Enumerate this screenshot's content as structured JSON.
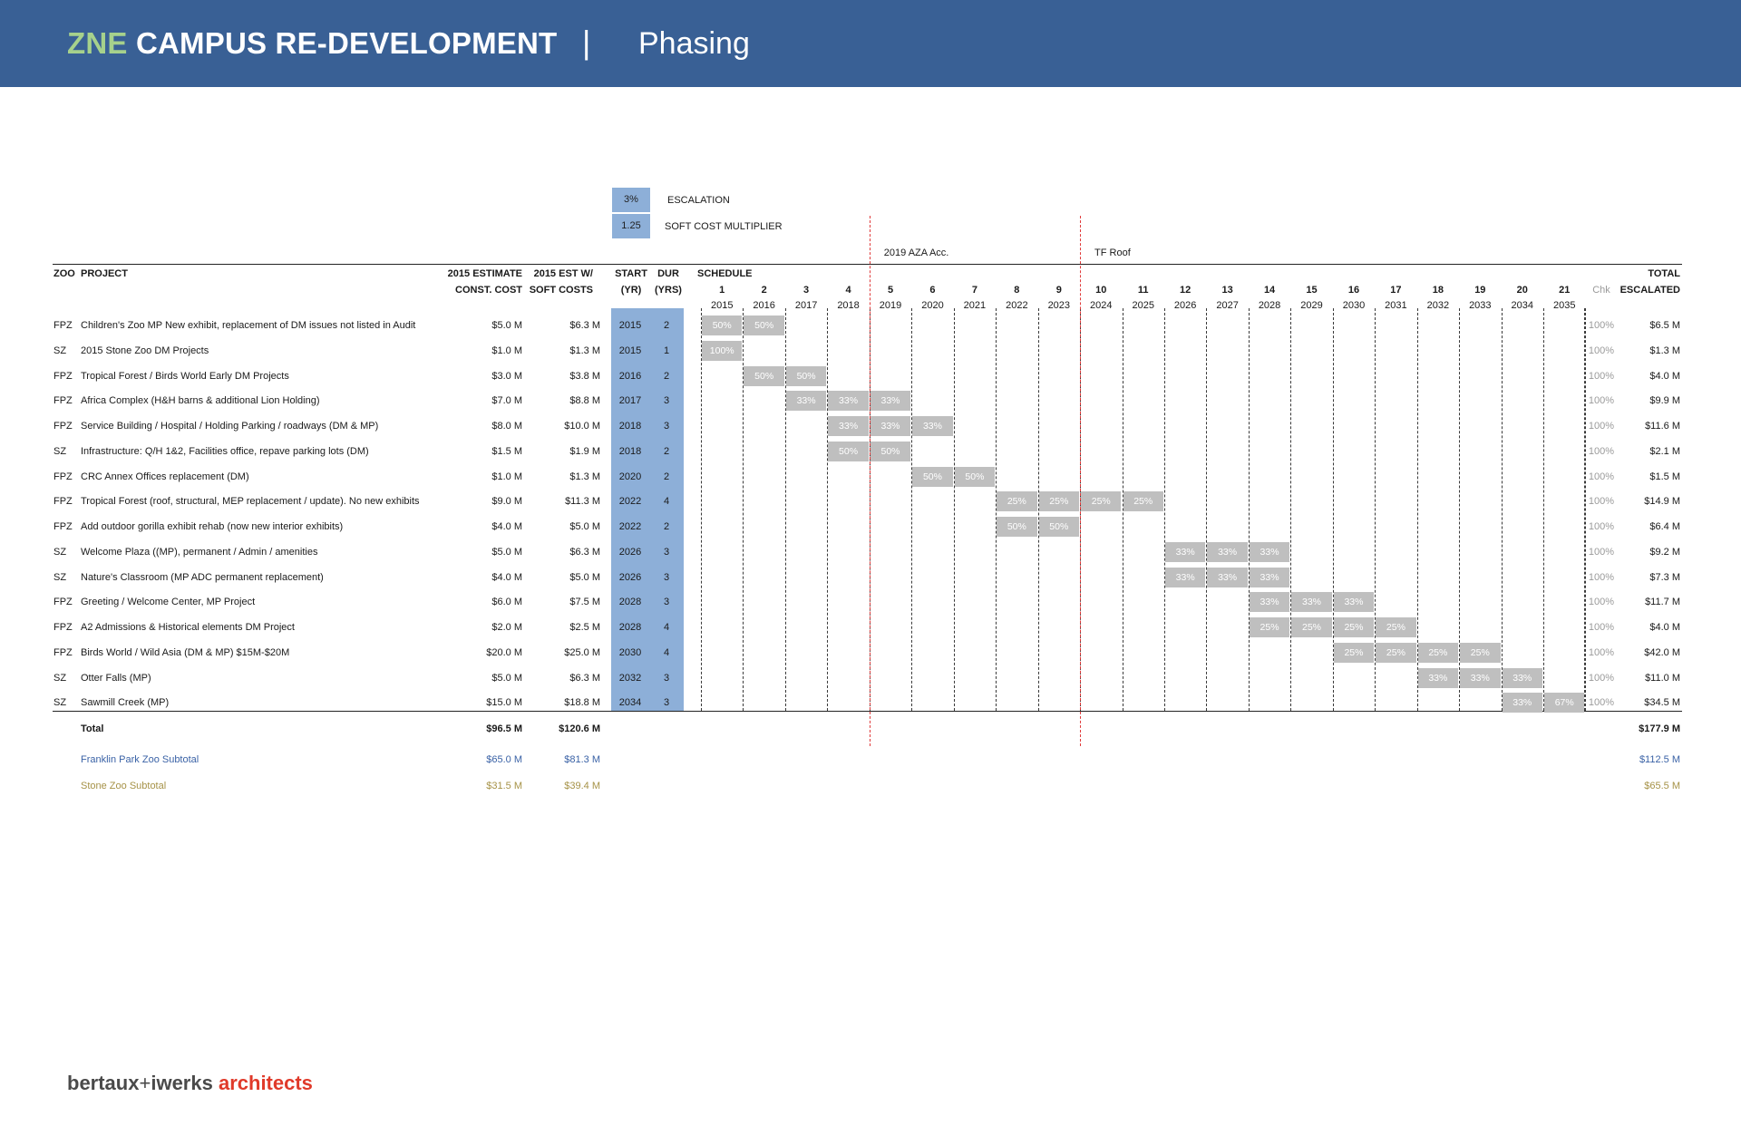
{
  "header": {
    "title_accent": "ZNE",
    "title_main": "CAMPUS RE-DEVELOPMENT",
    "separator": "|",
    "subtitle": "Phasing"
  },
  "params": {
    "escalation_value": "3%",
    "escalation_label": "ESCALATION",
    "soft_cost_value": "1.25",
    "soft_cost_label": "SOFT COST MULTIPLIER"
  },
  "markers": [
    {
      "label": "2019 AZA Acc.",
      "after_year": 4
    },
    {
      "label": "TF Roof",
      "after_year": 9
    }
  ],
  "table": {
    "headers": {
      "zoo": "ZOO",
      "project": "PROJECT",
      "estimate_1": "2015 ESTIMATE",
      "estimate_2": "CONST. COST",
      "soft_1": "2015 EST W/",
      "soft_2": "SOFT COSTS",
      "start_1": "START",
      "start_2": "(YR)",
      "dur_1": "DUR",
      "dur_2": "(YRS)",
      "schedule": "SCHEDULE",
      "chk": "Chk",
      "total_1": "TOTAL",
      "total_2": "ESCALATED"
    },
    "schedule_numbers": [
      "1",
      "2",
      "3",
      "4",
      "5",
      "6",
      "7",
      "8",
      "9",
      "10",
      "11",
      "12",
      "13",
      "14",
      "15",
      "16",
      "17",
      "18",
      "19",
      "20",
      "21"
    ],
    "schedule_years": [
      "2015",
      "2016",
      "2017",
      "2018",
      "2019",
      "2020",
      "2021",
      "2022",
      "2023",
      "2024",
      "2025",
      "2026",
      "2027",
      "2028",
      "2029",
      "2030",
      "2031",
      "2032",
      "2033",
      "2034",
      "2035"
    ],
    "rows": [
      {
        "zoo": "FPZ",
        "project": "Children's Zoo MP New exhibit, replacement of DM issues not listed in Audit",
        "cost": "$5.0 M",
        "soft": "$6.3 M",
        "start": "2015",
        "dur": "2",
        "startIndex": 0,
        "cells": [
          "50%",
          "50%"
        ],
        "chk": "100%",
        "total": "$6.5 M"
      },
      {
        "zoo": "SZ",
        "project": "2015 Stone Zoo DM Projects",
        "cost": "$1.0 M",
        "soft": "$1.3 M",
        "start": "2015",
        "dur": "1",
        "startIndex": 0,
        "cells": [
          "100%"
        ],
        "chk": "100%",
        "total": "$1.3 M"
      },
      {
        "zoo": "FPZ",
        "project": "Tropical Forest / Birds World Early DM Projects",
        "cost": "$3.0 M",
        "soft": "$3.8 M",
        "start": "2016",
        "dur": "2",
        "startIndex": 1,
        "cells": [
          "50%",
          "50%"
        ],
        "chk": "100%",
        "total": "$4.0 M"
      },
      {
        "zoo": "FPZ",
        "project": "Africa Complex (H&H barns & additional Lion Holding)",
        "cost": "$7.0 M",
        "soft": "$8.8 M",
        "start": "2017",
        "dur": "3",
        "startIndex": 2,
        "cells": [
          "33%",
          "33%",
          "33%"
        ],
        "chk": "100%",
        "total": "$9.9 M"
      },
      {
        "zoo": "FPZ",
        "project": "Service Building / Hospital / Holding Parking / roadways (DM & MP)",
        "cost": "$8.0 M",
        "soft": "$10.0 M",
        "start": "2018",
        "dur": "3",
        "startIndex": 3,
        "cells": [
          "33%",
          "33%",
          "33%"
        ],
        "chk": "100%",
        "total": "$11.6 M"
      },
      {
        "zoo": "SZ",
        "project": "Infrastructure: Q/H 1&2, Facilities office, repave parking lots (DM)",
        "cost": "$1.5 M",
        "soft": "$1.9 M",
        "start": "2018",
        "dur": "2",
        "startIndex": 3,
        "cells": [
          "50%",
          "50%"
        ],
        "chk": "100%",
        "total": "$2.1 M"
      },
      {
        "zoo": "FPZ",
        "project": "CRC Annex Offices replacement (DM)",
        "cost": "$1.0 M",
        "soft": "$1.3 M",
        "start": "2020",
        "dur": "2",
        "startIndex": 5,
        "cells": [
          "50%",
          "50%"
        ],
        "chk": "100%",
        "total": "$1.5 M"
      },
      {
        "zoo": "FPZ",
        "project": "Tropical Forest (roof, structural, MEP replacement / update). No new exhibits",
        "cost": "$9.0 M",
        "soft": "$11.3 M",
        "start": "2022",
        "dur": "4",
        "startIndex": 7,
        "cells": [
          "25%",
          "25%",
          "25%",
          "25%"
        ],
        "chk": "100%",
        "total": "$14.9 M"
      },
      {
        "zoo": "FPZ",
        "project": "Add outdoor gorilla exhibit rehab (now new interior exhibits)",
        "cost": "$4.0 M",
        "soft": "$5.0 M",
        "start": "2022",
        "dur": "2",
        "startIndex": 7,
        "cells": [
          "50%",
          "50%"
        ],
        "chk": "100%",
        "total": "$6.4 M"
      },
      {
        "zoo": "SZ",
        "project": "Welcome Plaza ((MP), permanent / Admin / amenities",
        "cost": "$5.0 M",
        "soft": "$6.3 M",
        "start": "2026",
        "dur": "3",
        "startIndex": 11,
        "cells": [
          "33%",
          "33%",
          "33%"
        ],
        "chk": "100%",
        "total": "$9.2 M"
      },
      {
        "zoo": "SZ",
        "project": "Nature's Classroom (MP ADC permanent replacement)",
        "cost": "$4.0 M",
        "soft": "$5.0 M",
        "start": "2026",
        "dur": "3",
        "startIndex": 11,
        "cells": [
          "33%",
          "33%",
          "33%"
        ],
        "chk": "100%",
        "total": "$7.3 M"
      },
      {
        "zoo": "FPZ",
        "project": "Greeting / Welcome Center, MP Project",
        "cost": "$6.0 M",
        "soft": "$7.5 M",
        "start": "2028",
        "dur": "3",
        "startIndex": 13,
        "cells": [
          "33%",
          "33%",
          "33%"
        ],
        "chk": "100%",
        "total": "$11.7 M"
      },
      {
        "zoo": "FPZ",
        "project": "A2 Admissions & Historical elements DM Project",
        "cost": "$2.0 M",
        "soft": "$2.5 M",
        "start": "2028",
        "dur": "4",
        "startIndex": 13,
        "cells": [
          "25%",
          "25%",
          "25%",
          "25%"
        ],
        "chk": "100%",
        "total": "$4.0 M"
      },
      {
        "zoo": "FPZ",
        "project": "Birds World / Wild Asia (DM & MP) $15M-$20M",
        "cost": "$20.0 M",
        "soft": "$25.0 M",
        "start": "2030",
        "dur": "4",
        "startIndex": 15,
        "cells": [
          "25%",
          "25%",
          "25%",
          "25%"
        ],
        "chk": "100%",
        "total": "$42.0 M"
      },
      {
        "zoo": "SZ",
        "project": "Otter Falls (MP)",
        "cost": "$5.0 M",
        "soft": "$6.3 M",
        "start": "2032",
        "dur": "3",
        "startIndex": 17,
        "cells": [
          "33%",
          "33%",
          "33%"
        ],
        "chk": "100%",
        "total": "$11.0 M"
      },
      {
        "zoo": "SZ",
        "project": "Sawmill Creek (MP)",
        "cost": "$15.0 M",
        "soft": "$18.8 M",
        "start": "2034",
        "dur": "3",
        "startIndex": 19,
        "cells": [
          "33%",
          "67%"
        ],
        "chk": "100%",
        "total": "$34.5 M"
      }
    ],
    "total": {
      "label": "Total",
      "cost": "$96.5 M",
      "soft": "$120.6 M",
      "escalated": "$177.9 M"
    },
    "fpz_subtotal": {
      "label": "Franklin Park Zoo Subtotal",
      "cost": "$65.0 M",
      "soft": "$81.3 M",
      "escalated": "$112.5 M"
    },
    "sz_subtotal": {
      "label": "Stone Zoo Subtotal",
      "cost": "$31.5 M",
      "soft": "$39.4 M",
      "escalated": "$65.5 M"
    }
  },
  "footer": {
    "logo_part1": "bertaux",
    "logo_plus": "+",
    "logo_part2": "iwerks",
    "logo_part3": "architects"
  },
  "colors": {
    "header_bg": "#396095",
    "accent_green": "#a6d18c",
    "param_blue": "#8dafd8",
    "schedule_gray": "#bfbfbf",
    "fpz_blue": "#3a62a6",
    "sz_gold": "#a69247",
    "logo_red": "#e03a2a",
    "marker_red": "#e03a3a"
  }
}
